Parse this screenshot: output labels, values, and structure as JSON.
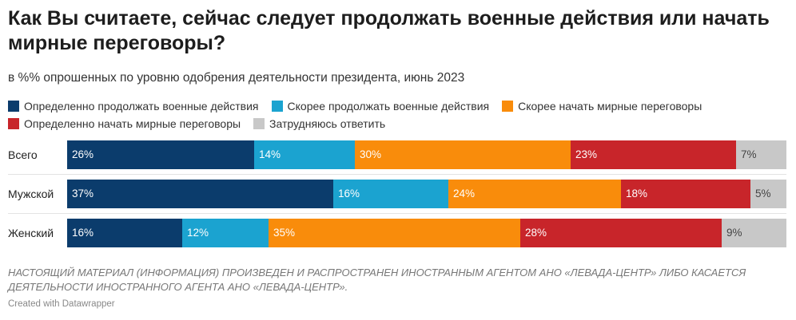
{
  "title": "Как Вы считаете, сейчас следует продолжать военные действия или начать мирные переговоры?",
  "subtitle": "в %% опрошенных по уровню одобрения деятельности президента, июнь 2023",
  "note": "НАСТОЯЩИЙ МАТЕРИАЛ (ИНФОРМАЦИЯ) ПРОИЗВЕДЕН И РАСПРОСТРАНЕН ИНОСТРАННЫМ АГЕНТОМ АНО «ЛЕВАДА-ЦЕНТР» ЛИБО КАСАЕТСЯ ДЕЯТЕЛЬНОСТИ ИНОСТРАННОГО АГЕНТА АНО «ЛЕВАДА-ЦЕНТР».",
  "credit": "Created with Datawrapper",
  "chart_data": {
    "type": "bar",
    "orientation": "horizontal",
    "stacked": true,
    "categories": [
      "Всего",
      "Мужской",
      "Женский"
    ],
    "series": [
      {
        "name": "Определенно продолжать военные действия",
        "color": "#0b3c6c",
        "label_color": "#ffffff",
        "values": [
          26,
          37,
          16
        ],
        "labels": [
          "26%",
          "37%",
          "16%"
        ]
      },
      {
        "name": "Скорее продолжать военные действия",
        "color": "#1ba3d0",
        "label_color": "#ffffff",
        "values": [
          14,
          16,
          12
        ],
        "labels": [
          "14%",
          "16%",
          "12%"
        ]
      },
      {
        "name": "Скорее начать мирные переговоры",
        "color": "#f98c0b",
        "label_color": "#ffffff",
        "values": [
          30,
          24,
          35
        ],
        "labels": [
          "30%",
          "24%",
          "35%"
        ]
      },
      {
        "name": "Определенно начать мирные переговоры",
        "color": "#c8252a",
        "label_color": "#ffffff",
        "values": [
          23,
          18,
          28
        ],
        "labels": [
          "23%",
          "18%",
          "28%"
        ]
      },
      {
        "name": "Затрудняюсь ответить",
        "color": "#c8c8c8",
        "label_color": "#444444",
        "values": [
          7,
          5,
          9
        ],
        "labels": [
          "7%",
          "5%",
          "9%"
        ]
      }
    ],
    "legend_rows": [
      [
        0,
        1,
        2
      ],
      [
        3,
        4
      ]
    ],
    "legend_position": "top"
  }
}
